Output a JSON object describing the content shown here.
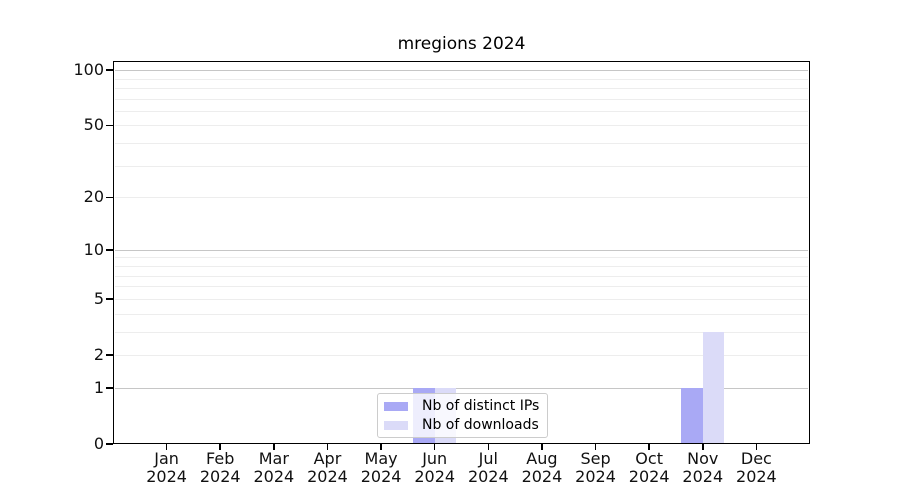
{
  "chart_data": {
    "type": "bar",
    "title": "mregions 2024",
    "months": [
      "Jan",
      "Feb",
      "Mar",
      "Apr",
      "May",
      "Jun",
      "Jul",
      "Aug",
      "Sep",
      "Oct",
      "Nov",
      "Dec"
    ],
    "year": "2024",
    "series": [
      {
        "name": "Nb of distinct IPs",
        "color": "#a9a9f5",
        "values": [
          0,
          0,
          0,
          0,
          0,
          1,
          0,
          0,
          0,
          0,
          1,
          0
        ]
      },
      {
        "name": "Nb of downloads",
        "color": "#dbdbf8",
        "values": [
          0,
          0,
          0,
          0,
          0,
          1,
          0,
          0,
          0,
          0,
          3,
          0
        ]
      }
    ],
    "y_axis": {
      "scale": "log1p",
      "tick_values": [
        0,
        1,
        2,
        5,
        10,
        20,
        50,
        100
      ],
      "major_gridlines": [
        1,
        10,
        100
      ],
      "minor_gridlines": [
        2,
        3,
        4,
        5,
        6,
        7,
        8,
        9,
        20,
        30,
        40,
        50,
        60,
        70,
        80,
        90
      ],
      "ylim": [
        0,
        112
      ]
    },
    "legend_position": "bottom-center"
  }
}
